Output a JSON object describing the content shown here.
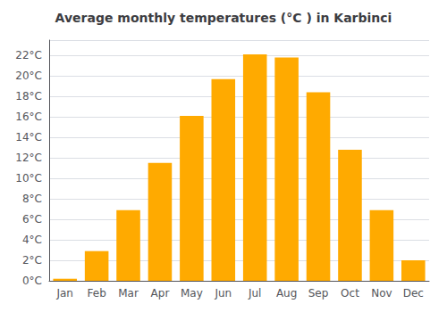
{
  "chart_data": {
    "type": "bar",
    "title": "Average monthly temperatures (°C ) in Karbinci",
    "categories": [
      "Jan",
      "Feb",
      "Mar",
      "Apr",
      "May",
      "Jun",
      "Jul",
      "Aug",
      "Sep",
      "Oct",
      "Nov",
      "Dec"
    ],
    "values": [
      0.2,
      2.9,
      6.9,
      11.5,
      16.1,
      19.7,
      22.1,
      21.8,
      18.4,
      12.8,
      6.9,
      2.0
    ],
    "color": "#FFAA00",
    "ylim": [
      0,
      23.5
    ],
    "yticks": [
      {
        "value": 0,
        "label": "0°C"
      },
      {
        "value": 2,
        "label": "2°C"
      },
      {
        "value": 4,
        "label": "4°C"
      },
      {
        "value": 6,
        "label": "6°C"
      },
      {
        "value": 8,
        "label": "8°C"
      },
      {
        "value": 10,
        "label": "10°C"
      },
      {
        "value": 12,
        "label": "12°C"
      },
      {
        "value": 14,
        "label": "14°C"
      },
      {
        "value": 16,
        "label": "16°C"
      },
      {
        "value": 18,
        "label": "18°C"
      },
      {
        "value": 20,
        "label": "20°C"
      },
      {
        "value": 22,
        "label": "22°C"
      }
    ],
    "grid": true
  }
}
